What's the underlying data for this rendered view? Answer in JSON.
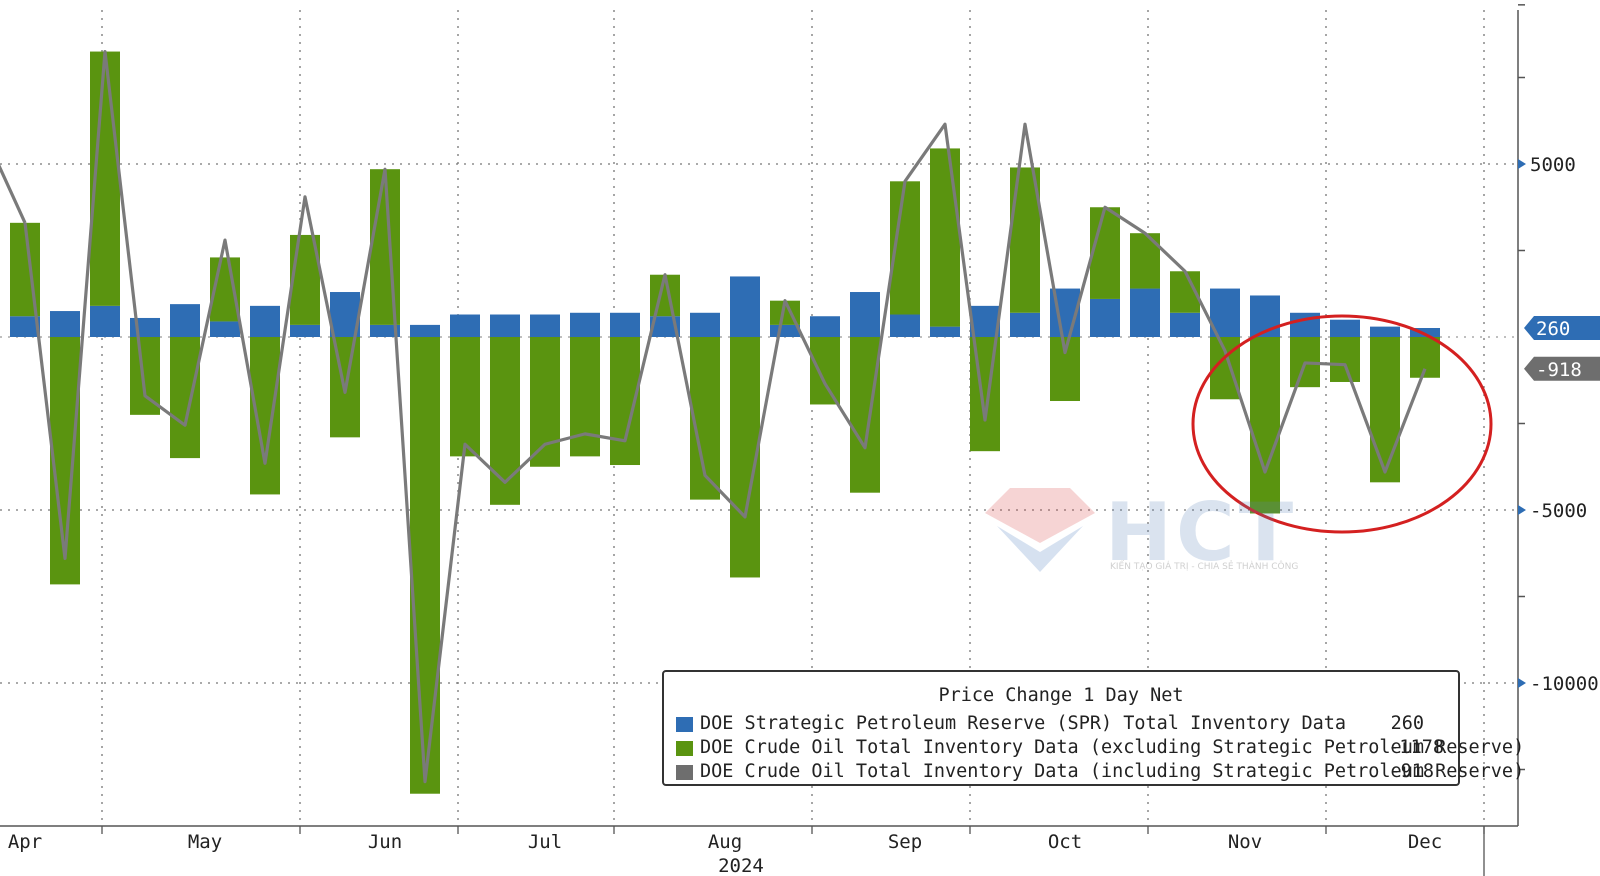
{
  "chart_data": {
    "type": "bar",
    "ylim": [
      -14000,
      9600
    ],
    "y_ticks": [
      {
        "value": 5000,
        "label": "5000"
      },
      {
        "value": -5000,
        "label": "-5000"
      },
      {
        "value": -10000,
        "label": "-10000"
      }
    ],
    "x_ticks": [
      {
        "index": 0,
        "label": "Apr"
      },
      {
        "index": 4.5,
        "label": "May"
      },
      {
        "index": 9,
        "label": "Jun"
      },
      {
        "index": 13,
        "label": "Jul"
      },
      {
        "index": 17.5,
        "label": "Aug"
      },
      {
        "index": 22,
        "label": "Sep"
      },
      {
        "index": 26,
        "label": "Oct"
      },
      {
        "index": 30.5,
        "label": "Nov"
      },
      {
        "index": 35,
        "label": "Dec"
      }
    ],
    "x_year_label": "2024",
    "series": [
      {
        "name": "DOE Strategic Petroleum Reserve (SPR) Total Inventory Data",
        "color": "#2e6db4",
        "values": [
          600,
          750,
          900,
          550,
          950,
          450,
          900,
          350,
          1300,
          350,
          350,
          650,
          650,
          650,
          700,
          700,
          600,
          700,
          1750,
          350,
          600,
          1300,
          650,
          300,
          900,
          700,
          1400,
          1100,
          1400,
          700,
          1400,
          1200,
          700,
          500,
          300,
          260
        ]
      },
      {
        "name": "DOE Crude Oil Total Inventory Data (excluding Strategic Petroleum Reserve)",
        "color": "#5a9410",
        "values": [
          2700,
          -7150,
          7350,
          -2250,
          -3500,
          1850,
          -4550,
          2600,
          -2900,
          4500,
          -13200,
          -3450,
          -4850,
          -3750,
          -3450,
          -3700,
          1200,
          -4700,
          -6950,
          700,
          -1950,
          -4500,
          3850,
          5150,
          -3300,
          4200,
          -1850,
          2650,
          1600,
          1200,
          -1800,
          -5100,
          -1450,
          -1300,
          -4200,
          -1178
        ]
      },
      {
        "name": "DOE Crude Oil Total Inventory Data (including Strategic Petroleum Reserve)",
        "color": "#7a7a7a",
        "values": [
          3300,
          -6400,
          8250,
          -1700,
          -2550,
          2800,
          -3650,
          4050,
          -1600,
          4850,
          -12850,
          -3100,
          -4200,
          -3100,
          -2800,
          -3000,
          1800,
          -4000,
          -5200,
          1050,
          -1350,
          -3200,
          4500,
          6150,
          -2400,
          6150,
          -450,
          3750,
          3000,
          1900,
          -400,
          -3900,
          -750,
          -800,
          -3900,
          -918
        ]
      }
    ],
    "legend": {
      "title": "Price Change 1 Day Net",
      "entries": [
        {
          "label": "DOE Strategic Petroleum Reserve (SPR) Total Inventory Data",
          "value": "260",
          "color": "#2e6db4"
        },
        {
          "label": "DOE Crude Oil Total Inventory Data (excluding Strategic Petroleum Reserve)",
          "value": "-1178",
          "color": "#5a9410"
        },
        {
          "label": "DOE Crude Oil Total Inventory Data (including Strategic Petroleum Reserve)",
          "value": "-918",
          "color": "#6e6e6e"
        }
      ]
    },
    "last_value_tags": [
      {
        "label": "260",
        "value": 260,
        "color": "#2e6db4"
      },
      {
        "label": "-918",
        "value": -918,
        "color": "#6e6e6e"
      }
    ],
    "highlight_annotation": {
      "shape": "ellipse",
      "color": "#d42020",
      "from_index": 31,
      "to_index": 35
    }
  },
  "watermark": {
    "text": "HCT",
    "subtitle": "KIẾN TẠO GIÁ TRỊ - CHIA SẺ THÀNH CÔNG"
  }
}
